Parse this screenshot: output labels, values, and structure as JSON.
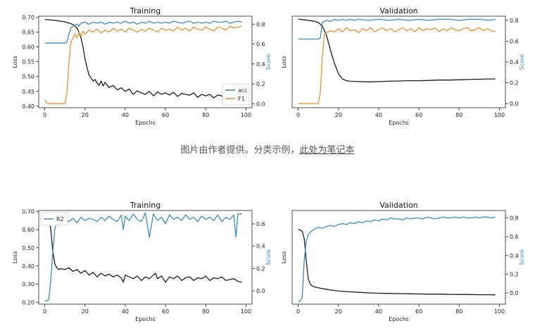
{
  "caption": {
    "prefix": "图片由作者提供。分类示例，",
    "link_text": "此处为笔记本"
  },
  "colors": {
    "loss": "#1a1a1a",
    "acc": "#3b8bc2",
    "f1": "#f28e2b",
    "r2": "#3b8bc2",
    "score_axis_label": "#3b8bc2"
  },
  "chart_data": [
    {
      "type": "line",
      "title": "Training",
      "xlabel": "Epochs",
      "ylabel": "Loss",
      "ylabel_right": "Score",
      "xlim": [
        -3,
        103
      ],
      "ylim": [
        0.395,
        0.703
      ],
      "ylim_right": [
        -0.04,
        0.88
      ],
      "xticks": [
        0,
        20,
        40,
        60,
        80,
        100
      ],
      "yticks": [
        0.4,
        0.45,
        0.5,
        0.55,
        0.6,
        0.65,
        0.7
      ],
      "yticks_right": [
        0.0,
        0.2,
        0.4,
        0.6,
        0.8
      ],
      "legend": "bottom-right",
      "series": [
        {
          "key": "loss",
          "axis": "left",
          "x": [
            0,
            5,
            8,
            10,
            12,
            14,
            16,
            17,
            18,
            19,
            20,
            21,
            22,
            23,
            24,
            25,
            26,
            27,
            28,
            29,
            30,
            32,
            34,
            36,
            38,
            40,
            42,
            44,
            46,
            48,
            50,
            52,
            54,
            56,
            58,
            60,
            62,
            64,
            66,
            68,
            70,
            72,
            74,
            76,
            78,
            80,
            82,
            84,
            86,
            88,
            90,
            92,
            94,
            96,
            98
          ],
          "values": [
            0.692,
            0.689,
            0.686,
            0.684,
            0.68,
            0.675,
            0.663,
            0.65,
            0.63,
            0.6,
            0.56,
            0.53,
            0.505,
            0.495,
            0.485,
            0.49,
            0.478,
            0.47,
            0.485,
            0.468,
            0.48,
            0.463,
            0.47,
            0.455,
            0.462,
            0.45,
            0.458,
            0.44,
            0.452,
            0.445,
            0.44,
            0.45,
            0.435,
            0.448,
            0.44,
            0.445,
            0.438,
            0.447,
            0.433,
            0.443,
            0.44,
            0.437,
            0.445,
            0.43,
            0.44,
            0.435,
            0.44,
            0.428,
            0.438,
            0.435,
            0.405,
            0.43,
            0.425,
            0.435,
            0.43
          ]
        },
        {
          "key": "acc",
          "name": "acc",
          "axis": "right",
          "x": [
            0,
            4,
            8,
            10,
            11,
            12,
            13,
            14,
            15,
            16,
            17,
            18,
            20,
            22,
            24,
            26,
            28,
            30,
            32,
            34,
            36,
            38,
            40,
            42,
            44,
            46,
            48,
            50,
            52,
            54,
            56,
            58,
            60,
            62,
            64,
            66,
            68,
            70,
            72,
            74,
            76,
            78,
            80,
            82,
            84,
            86,
            88,
            90,
            92,
            94,
            96,
            98
          ],
          "values": [
            0.61,
            0.61,
            0.61,
            0.61,
            0.62,
            0.7,
            0.76,
            0.78,
            0.79,
            0.8,
            0.78,
            0.81,
            0.82,
            0.8,
            0.82,
            0.81,
            0.82,
            0.8,
            0.82,
            0.81,
            0.82,
            0.81,
            0.83,
            0.81,
            0.82,
            0.8,
            0.82,
            0.81,
            0.83,
            0.81,
            0.82,
            0.81,
            0.82,
            0.81,
            0.83,
            0.82,
            0.81,
            0.82,
            0.83,
            0.81,
            0.82,
            0.81,
            0.82,
            0.81,
            0.83,
            0.82,
            0.82,
            0.83,
            0.81,
            0.82,
            0.83,
            0.82
          ]
        },
        {
          "key": "f1",
          "name": "F1",
          "axis": "right",
          "x": [
            0,
            1,
            2,
            4,
            8,
            10,
            11,
            12,
            13,
            14,
            15,
            16,
            17,
            18,
            19,
            20,
            22,
            24,
            26,
            28,
            30,
            32,
            34,
            36,
            38,
            40,
            42,
            44,
            46,
            48,
            50,
            52,
            54,
            56,
            58,
            60,
            62,
            64,
            66,
            68,
            70,
            72,
            74,
            76,
            78,
            80,
            82,
            84,
            86,
            88,
            90,
            92,
            94,
            96,
            98
          ],
          "values": [
            0.04,
            0.01,
            0.0,
            0.0,
            0.0,
            0.0,
            0.1,
            0.4,
            0.62,
            0.66,
            0.7,
            0.66,
            0.72,
            0.68,
            0.73,
            0.7,
            0.74,
            0.72,
            0.75,
            0.71,
            0.74,
            0.72,
            0.76,
            0.73,
            0.75,
            0.72,
            0.76,
            0.74,
            0.72,
            0.75,
            0.73,
            0.76,
            0.74,
            0.72,
            0.76,
            0.74,
            0.75,
            0.73,
            0.77,
            0.74,
            0.76,
            0.73,
            0.77,
            0.75,
            0.74,
            0.77,
            0.75,
            0.73,
            0.77,
            0.76,
            0.74,
            0.78,
            0.76,
            0.77,
            0.78
          ]
        }
      ]
    },
    {
      "type": "line",
      "title": "Validation",
      "xlabel": "Epochs",
      "ylabel": "Loss",
      "ylabel_right": "Score",
      "xlim": [
        -3,
        103
      ],
      "ylim": [
        0.395,
        0.703
      ],
      "ylim_right": [
        -0.04,
        0.84
      ],
      "xticks": [
        0,
        20,
        40,
        60,
        80,
        100
      ],
      "yticks": [],
      "yticks_right": [
        0.0,
        0.2,
        0.4,
        0.6,
        0.8
      ],
      "series": [
        {
          "key": "loss",
          "axis": "left",
          "x": [
            0,
            4,
            8,
            10,
            12,
            14,
            16,
            18,
            20,
            22,
            24,
            26,
            30,
            35,
            40,
            45,
            50,
            55,
            60,
            65,
            70,
            75,
            80,
            85,
            90,
            95,
            98
          ],
          "values": [
            0.693,
            0.69,
            0.686,
            0.682,
            0.67,
            0.64,
            0.59,
            0.545,
            0.51,
            0.492,
            0.486,
            0.484,
            0.483,
            0.482,
            0.483,
            0.484,
            0.485,
            0.486,
            0.486,
            0.487,
            0.488,
            0.488,
            0.489,
            0.49,
            0.491,
            0.492,
            0.492
          ]
        },
        {
          "key": "acc",
          "axis": "right",
          "x": [
            0,
            4,
            8,
            10,
            11,
            12,
            14,
            16,
            18,
            20,
            22,
            24,
            26,
            28,
            30,
            35,
            40,
            45,
            50,
            55,
            60,
            65,
            70,
            75,
            80,
            85,
            90,
            95,
            98
          ],
          "values": [
            0.62,
            0.62,
            0.62,
            0.62,
            0.63,
            0.78,
            0.8,
            0.79,
            0.81,
            0.8,
            0.81,
            0.8,
            0.81,
            0.8,
            0.81,
            0.8,
            0.81,
            0.8,
            0.81,
            0.8,
            0.81,
            0.8,
            0.81,
            0.81,
            0.8,
            0.81,
            0.81,
            0.8,
            0.81
          ]
        },
        {
          "key": "f1",
          "axis": "right",
          "x": [
            0,
            4,
            8,
            10,
            11,
            12,
            13,
            14,
            16,
            18,
            20,
            22,
            24,
            26,
            28,
            30,
            32,
            34,
            36,
            38,
            40,
            42,
            44,
            46,
            48,
            50,
            52,
            54,
            56,
            58,
            60,
            62,
            64,
            66,
            68,
            70,
            72,
            74,
            76,
            78,
            80,
            82,
            84,
            86,
            88,
            90,
            92,
            94,
            96,
            98
          ],
          "values": [
            0.0,
            0.0,
            0.0,
            0.0,
            0.1,
            0.45,
            0.66,
            0.68,
            0.7,
            0.69,
            0.72,
            0.69,
            0.73,
            0.7,
            0.71,
            0.68,
            0.72,
            0.7,
            0.73,
            0.69,
            0.71,
            0.73,
            0.7,
            0.72,
            0.69,
            0.71,
            0.73,
            0.7,
            0.72,
            0.69,
            0.73,
            0.7,
            0.72,
            0.71,
            0.73,
            0.69,
            0.72,
            0.7,
            0.73,
            0.71,
            0.7,
            0.72,
            0.73,
            0.7,
            0.71,
            0.73,
            0.7,
            0.72,
            0.7,
            0.69
          ]
        }
      ]
    },
    {
      "type": "line",
      "title": "Training",
      "xlabel": "Epochs",
      "ylabel": "Loss",
      "ylabel_right": "Score",
      "xlim": [
        -3,
        103
      ],
      "ylim": [
        0.19,
        0.705
      ],
      "ylim_right": [
        -0.12,
        0.72
      ],
      "xticks": [
        0,
        20,
        40,
        60,
        80,
        100
      ],
      "yticks": [
        0.2,
        0.3,
        0.4,
        0.5,
        0.6,
        0.7
      ],
      "yticks_right": [
        0.0,
        0.2,
        0.4,
        0.6
      ],
      "legend": "top-left",
      "series": [
        {
          "key": "loss",
          "axis": "left",
          "x": [
            2,
            3,
            4,
            5,
            6,
            7,
            8,
            10,
            12,
            14,
            16,
            18,
            20,
            22,
            24,
            26,
            28,
            30,
            32,
            34,
            36,
            38,
            39,
            40,
            42,
            44,
            46,
            48,
            50,
            52,
            54,
            55,
            56,
            58,
            60,
            62,
            64,
            66,
            68,
            70,
            72,
            74,
            76,
            78,
            80,
            82,
            84,
            86,
            88,
            90,
            92,
            94,
            96,
            98
          ],
          "values": [
            0.68,
            0.6,
            0.48,
            0.41,
            0.39,
            0.38,
            0.385,
            0.38,
            0.39,
            0.37,
            0.38,
            0.36,
            0.375,
            0.35,
            0.365,
            0.34,
            0.36,
            0.345,
            0.355,
            0.34,
            0.35,
            0.335,
            0.31,
            0.35,
            0.34,
            0.33,
            0.345,
            0.32,
            0.34,
            0.33,
            0.35,
            0.36,
            0.33,
            0.345,
            0.31,
            0.34,
            0.33,
            0.345,
            0.32,
            0.335,
            0.34,
            0.32,
            0.335,
            0.33,
            0.345,
            0.32,
            0.335,
            0.33,
            0.34,
            0.32,
            0.325,
            0.33,
            0.315,
            0.31
          ]
        },
        {
          "key": "r2",
          "name": "R2",
          "axis": "right",
          "x": [
            0,
            1,
            2,
            3,
            4,
            5,
            6,
            8,
            10,
            12,
            14,
            16,
            18,
            20,
            22,
            24,
            26,
            28,
            30,
            32,
            34,
            36,
            38,
            39,
            40,
            42,
            44,
            46,
            48,
            50,
            52,
            54,
            56,
            58,
            60,
            62,
            64,
            66,
            68,
            70,
            72,
            74,
            76,
            78,
            80,
            82,
            84,
            86,
            88,
            90,
            92,
            94,
            95,
            96,
            98
          ],
          "values": [
            -0.09,
            -0.09,
            -0.08,
            0.1,
            0.35,
            0.55,
            0.62,
            0.6,
            0.64,
            0.62,
            0.65,
            0.61,
            0.66,
            0.63,
            0.65,
            0.64,
            0.62,
            0.66,
            0.63,
            0.67,
            0.64,
            0.62,
            0.68,
            0.55,
            0.67,
            0.63,
            0.69,
            0.64,
            0.62,
            0.7,
            0.48,
            0.69,
            0.63,
            0.66,
            0.6,
            0.68,
            0.64,
            0.66,
            0.63,
            0.68,
            0.64,
            0.66,
            0.62,
            0.67,
            0.64,
            0.66,
            0.63,
            0.68,
            0.62,
            0.66,
            0.64,
            0.68,
            0.48,
            0.69,
            0.69
          ]
        }
      ]
    },
    {
      "type": "line",
      "title": "Validation",
      "xlabel": "Epochs",
      "ylabel": "Loss",
      "ylabel_right": "Score",
      "xlim": [
        -3,
        103
      ],
      "ylim": [
        0.19,
        0.705
      ],
      "ylim_right": [
        -0.12,
        0.88
      ],
      "xticks": [
        0,
        20,
        40,
        60,
        80,
        100
      ],
      "yticks": [],
      "yticks_right": [
        0.0,
        0.2,
        0.4,
        0.6,
        0.8
      ],
      "series": [
        {
          "key": "loss",
          "axis": "left",
          "x": [
            0,
            1,
            2,
            3,
            4,
            5,
            6,
            7,
            8,
            10,
            12,
            14,
            16,
            18,
            20,
            25,
            30,
            35,
            40,
            45,
            50,
            55,
            60,
            65,
            70,
            75,
            80,
            85,
            90,
            95,
            98
          ],
          "values": [
            0.6,
            0.598,
            0.59,
            0.55,
            0.43,
            0.33,
            0.3,
            0.29,
            0.285,
            0.28,
            0.275,
            0.272,
            0.268,
            0.265,
            0.262,
            0.258,
            0.255,
            0.252,
            0.25,
            0.249,
            0.248,
            0.247,
            0.246,
            0.245,
            0.245,
            0.244,
            0.243,
            0.243,
            0.242,
            0.242,
            0.241
          ]
        },
        {
          "key": "acc",
          "axis": "right",
          "x": [
            0,
            1,
            2,
            3,
            4,
            5,
            6,
            8,
            10,
            12,
            14,
            16,
            18,
            20,
            22,
            24,
            26,
            28,
            30,
            32,
            34,
            36,
            38,
            40,
            42,
            44,
            46,
            48,
            50,
            52,
            54,
            56,
            58,
            60,
            62,
            64,
            66,
            68,
            70,
            72,
            74,
            76,
            78,
            80,
            82,
            84,
            86,
            88,
            90,
            92,
            94,
            96,
            98
          ],
          "values": [
            -0.09,
            -0.09,
            -0.05,
            0.35,
            0.55,
            0.62,
            0.65,
            0.68,
            0.7,
            0.69,
            0.71,
            0.72,
            0.71,
            0.73,
            0.74,
            0.73,
            0.75,
            0.74,
            0.76,
            0.75,
            0.77,
            0.76,
            0.78,
            0.77,
            0.79,
            0.78,
            0.8,
            0.79,
            0.79,
            0.78,
            0.8,
            0.79,
            0.8,
            0.8,
            0.79,
            0.81,
            0.8,
            0.79,
            0.8,
            0.81,
            0.8,
            0.8,
            0.81,
            0.8,
            0.81,
            0.8,
            0.8,
            0.81,
            0.8,
            0.81,
            0.81,
            0.8,
            0.81
          ]
        }
      ]
    }
  ]
}
